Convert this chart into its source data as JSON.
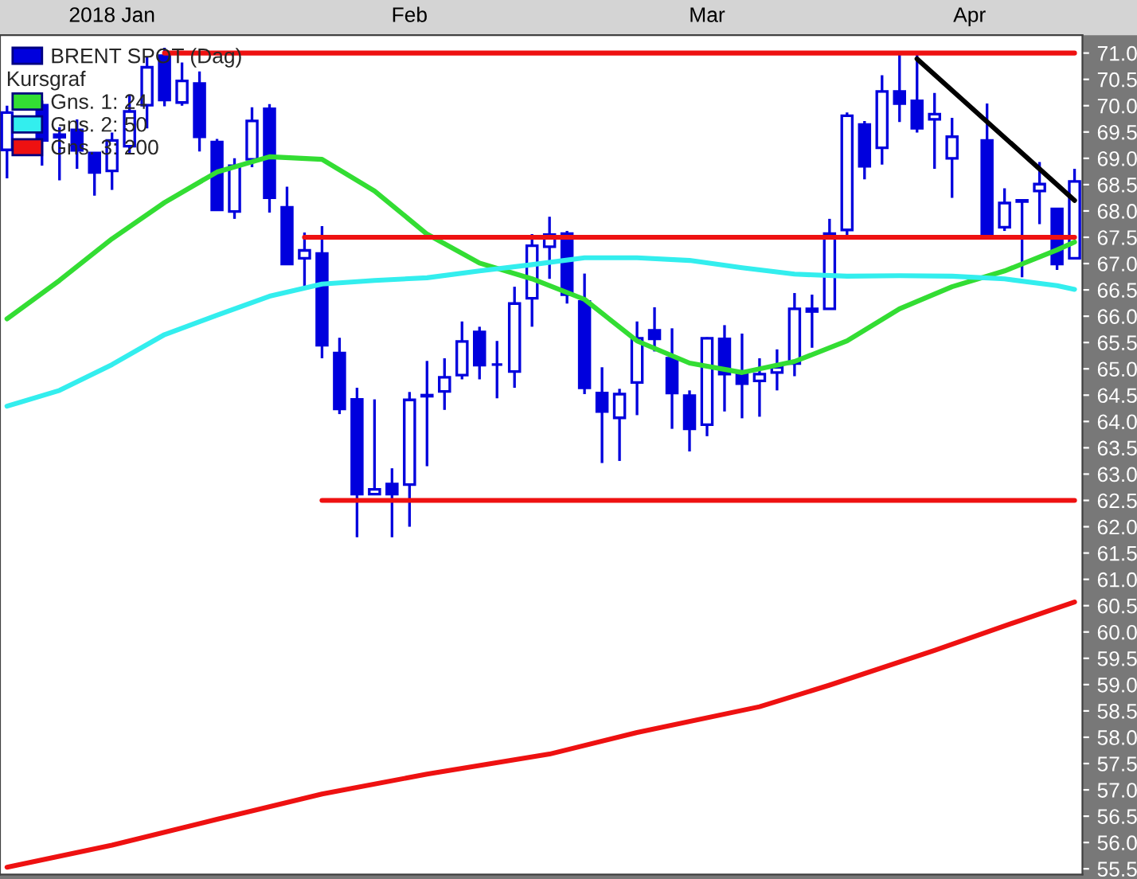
{
  "chart_data": {
    "type": "candlestick",
    "legend_title": "Kursgraf",
    "categories": [
      null,
      null,
      null,
      null,
      null,
      null,
      "2018 Jan",
      null,
      null,
      null,
      null,
      null,
      null,
      null,
      null,
      null,
      null,
      null,
      null,
      null,
      null,
      null,
      null,
      "Feb",
      null,
      null,
      null,
      null,
      null,
      null,
      null,
      null,
      null,
      null,
      null,
      null,
      null,
      null,
      null,
      null,
      "Mar",
      null,
      null,
      null,
      null,
      null,
      null,
      null,
      null,
      null,
      null,
      null,
      null,
      null,
      null,
      "Apr",
      null,
      null,
      null,
      null,
      null,
      null
    ],
    "series": [
      {
        "name": "BRENT SPOT (Dag)",
        "type": "candlestick",
        "color": "#0000dd",
        "ohlc": [
          [
            69.16,
            70.0,
            68.62,
            69.87
          ],
          null,
          [
            70.01,
            70.1,
            68.86,
            69.34
          ],
          [
            69.4,
            69.59,
            68.58,
            69.45
          ],
          [
            69.54,
            69.74,
            68.8,
            69.15
          ],
          [
            69.1,
            69.1,
            68.29,
            68.73
          ],
          [
            68.76,
            69.49,
            68.4,
            69.34
          ],
          [
            69.23,
            70.21,
            69.1,
            69.89
          ],
          [
            70.01,
            70.92,
            69.57,
            70.73
          ],
          [
            70.95,
            71.1,
            69.99,
            70.11
          ],
          [
            70.06,
            70.82,
            70.0,
            70.47
          ],
          [
            70.42,
            70.65,
            69.13,
            69.41
          ],
          [
            69.31,
            69.37,
            68.02,
            68.02
          ],
          [
            67.99,
            69.0,
            67.85,
            68.86
          ],
          [
            68.98,
            69.97,
            68.83,
            69.71
          ],
          [
            69.94,
            70.03,
            67.97,
            68.25
          ],
          [
            68.07,
            68.46,
            66.99,
            66.99
          ],
          [
            67.1,
            67.59,
            66.51,
            67.25
          ],
          [
            67.19,
            67.71,
            65.2,
            65.45
          ],
          [
            65.3,
            65.59,
            64.14,
            64.24
          ],
          [
            64.42,
            64.64,
            61.8,
            62.62
          ],
          [
            62.62,
            64.42,
            62.62,
            62.71
          ],
          [
            62.81,
            63.11,
            61.8,
            62.62
          ],
          [
            62.8,
            64.56,
            62.0,
            64.41
          ],
          [
            64.48,
            65.15,
            63.15,
            64.5
          ],
          [
            64.57,
            65.2,
            64.22,
            64.84
          ],
          [
            64.88,
            65.9,
            64.8,
            65.52
          ],
          [
            65.7,
            65.8,
            64.8,
            65.07
          ],
          [
            65.08,
            65.53,
            64.44,
            65.08
          ],
          [
            64.95,
            66.56,
            64.64,
            66.24
          ],
          [
            66.34,
            67.56,
            65.8,
            67.34
          ],
          [
            67.32,
            67.89,
            66.71,
            67.55
          ],
          [
            67.57,
            67.62,
            66.24,
            66.41
          ],
          [
            66.28,
            66.81,
            64.52,
            64.64
          ],
          [
            64.54,
            65.03,
            63.21,
            64.19
          ],
          [
            64.07,
            64.62,
            63.25,
            64.52
          ],
          [
            64.74,
            65.9,
            64.12,
            65.58
          ],
          [
            65.73,
            66.17,
            65.33,
            65.57
          ],
          [
            65.2,
            65.77,
            63.86,
            64.54
          ],
          [
            64.49,
            64.59,
            63.43,
            63.86
          ],
          [
            63.94,
            65.6,
            63.72,
            65.58
          ],
          [
            65.57,
            65.83,
            64.19,
            64.9
          ],
          [
            64.9,
            65.67,
            64.06,
            64.72
          ],
          [
            64.77,
            65.2,
            64.09,
            64.9
          ],
          [
            64.93,
            65.37,
            64.59,
            65.03
          ],
          [
            65.1,
            66.44,
            64.86,
            66.14
          ],
          [
            66.09,
            66.41,
            65.4,
            66.14
          ],
          [
            66.14,
            67.85,
            66.14,
            67.57
          ],
          [
            67.64,
            69.87,
            67.49,
            69.81
          ],
          [
            69.64,
            69.71,
            68.6,
            68.85
          ],
          [
            69.2,
            70.58,
            68.88,
            70.27
          ],
          [
            70.27,
            71.0,
            69.69,
            70.04
          ],
          [
            70.09,
            71.0,
            69.49,
            69.57
          ],
          [
            69.74,
            70.24,
            68.8,
            69.84
          ],
          [
            69.0,
            69.77,
            68.25,
            69.41
          ],
          null,
          [
            69.34,
            70.04,
            67.52,
            67.52
          ],
          [
            67.69,
            68.43,
            67.62,
            68.15
          ],
          [
            68.18,
            68.2,
            66.74,
            68.2
          ],
          [
            68.38,
            68.93,
            67.75,
            68.51
          ],
          [
            68.04,
            68.04,
            66.88,
            66.99
          ],
          [
            67.1,
            68.8,
            67.1,
            68.56
          ]
        ]
      },
      {
        "name": "Gns. 1: 24",
        "type": "line",
        "color": "#33dd33",
        "values": [
          65.95,
          null,
          null,
          66.68,
          null,
          null,
          67.47,
          null,
          null,
          68.16,
          null,
          null,
          68.74,
          null,
          null,
          69.03,
          null,
          null,
          68.98,
          null,
          null,
          68.38,
          null,
          null,
          67.56,
          null,
          null,
          67.01,
          null,
          null,
          66.71,
          null,
          null,
          66.32,
          null,
          null,
          65.53,
          null,
          null,
          65.11,
          null,
          null,
          64.93,
          null,
          null,
          65.14,
          null,
          null,
          65.53,
          null,
          null,
          66.14,
          null,
          null,
          66.56,
          null,
          null,
          66.86,
          null,
          null,
          67.26,
          67.41
        ]
      },
      {
        "name": "Gns. 2: 50",
        "type": "line",
        "color": "#33eeee",
        "values": [
          64.29,
          null,
          null,
          64.59,
          null,
          null,
          65.08,
          null,
          null,
          65.65,
          null,
          null,
          66.02,
          null,
          null,
          66.38,
          null,
          null,
          66.61,
          null,
          null,
          66.68,
          null,
          null,
          66.73,
          null,
          null,
          66.86,
          null,
          null,
          66.98,
          null,
          null,
          67.11,
          null,
          null,
          67.11,
          null,
          null,
          67.06,
          null,
          null,
          66.92,
          null,
          null,
          66.8,
          null,
          null,
          66.76,
          null,
          null,
          66.77,
          null,
          null,
          66.76,
          null,
          null,
          66.71,
          null,
          null,
          66.58,
          66.51
        ]
      },
      {
        "name": "Gns. 3: 200",
        "type": "line",
        "color": "#ee1111",
        "values": [
          55.53,
          null,
          null,
          null,
          null,
          null,
          55.95,
          null,
          null,
          null,
          null,
          null,
          56.44,
          null,
          null,
          null,
          null,
          null,
          56.92,
          null,
          null,
          null,
          null,
          null,
          57.3,
          null,
          null,
          null,
          null,
          null,
          null,
          57.68,
          null,
          null,
          null,
          null,
          58.09,
          null,
          null,
          null,
          null,
          null,
          null,
          58.58,
          null,
          null,
          null,
          58.99,
          null,
          null,
          null,
          null,
          null,
          59.65,
          null,
          null,
          null,
          null,
          60.23,
          null,
          null,
          60.57
        ]
      },
      {
        "type": "line",
        "color": "#ee1111",
        "values": [
          null,
          null,
          null,
          null,
          null,
          null,
          null,
          null,
          null,
          71.0,
          null,
          null,
          null,
          null,
          null,
          null,
          null,
          null,
          null,
          null,
          null,
          null,
          null,
          null,
          null,
          null,
          null,
          null,
          null,
          null,
          null,
          null,
          null,
          null,
          null,
          null,
          null,
          null,
          null,
          null,
          null,
          null,
          null,
          null,
          null,
          null,
          null,
          null,
          null,
          null,
          null,
          null,
          null,
          null,
          null,
          null,
          null,
          null,
          null,
          null,
          null,
          71.0
        ]
      },
      {
        "type": "line",
        "color": "#ee1111",
        "values": [
          null,
          null,
          null,
          null,
          null,
          null,
          null,
          null,
          null,
          null,
          null,
          null,
          null,
          null,
          null,
          null,
          null,
          67.5,
          null,
          null,
          null,
          null,
          null,
          null,
          null,
          null,
          null,
          null,
          null,
          null,
          null,
          null,
          null,
          null,
          null,
          null,
          null,
          null,
          null,
          null,
          null,
          null,
          null,
          null,
          null,
          null,
          null,
          null,
          null,
          null,
          null,
          null,
          null,
          null,
          null,
          null,
          null,
          null,
          null,
          null,
          null,
          67.5
        ]
      },
      {
        "type": "line",
        "color": "#ee1111",
        "values": [
          null,
          null,
          null,
          null,
          null,
          null,
          null,
          null,
          null,
          null,
          null,
          null,
          null,
          null,
          null,
          null,
          null,
          null,
          62.5,
          null,
          null,
          null,
          null,
          null,
          null,
          null,
          null,
          null,
          null,
          null,
          null,
          null,
          null,
          null,
          null,
          null,
          null,
          null,
          null,
          null,
          null,
          null,
          null,
          null,
          null,
          null,
          null,
          null,
          null,
          null,
          null,
          null,
          null,
          null,
          null,
          null,
          null,
          null,
          null,
          null,
          null,
          62.5
        ]
      },
      {
        "type": "line",
        "color": "#000000",
        "values": [
          null,
          null,
          null,
          null,
          null,
          null,
          null,
          null,
          null,
          null,
          null,
          null,
          null,
          null,
          null,
          null,
          null,
          null,
          null,
          null,
          null,
          null,
          null,
          null,
          null,
          null,
          null,
          null,
          null,
          null,
          null,
          null,
          null,
          null,
          null,
          null,
          null,
          null,
          null,
          null,
          null,
          null,
          null,
          null,
          null,
          null,
          null,
          null,
          null,
          null,
          null,
          null,
          70.89,
          null,
          null,
          null,
          null,
          null,
          null,
          null,
          null,
          68.2
        ]
      }
    ],
    "ylim": [
      55.39,
      71.34
    ],
    "yticks": [
      55.5,
      {
        "value": 56,
        "label": "56.0"
      },
      56.5,
      {
        "value": 57,
        "label": "57.0"
      },
      57.5,
      {
        "value": 58,
        "label": "58.0"
      },
      58.5,
      {
        "value": 59,
        "label": "59.0"
      },
      59.5,
      {
        "value": 60,
        "label": "60.0"
      },
      60.5,
      {
        "value": 61,
        "label": "61.0"
      },
      61.5,
      {
        "value": 62,
        "label": "62.0"
      },
      62.5,
      {
        "value": 63,
        "label": "63.0"
      },
      63.5,
      {
        "value": 64,
        "label": "64.0"
      },
      64.5,
      {
        "value": 65,
        "label": "65.0"
      },
      65.5,
      {
        "value": 66,
        "label": "66.0"
      },
      66.5,
      {
        "value": 67,
        "label": "67.0"
      },
      67.5,
      {
        "value": 68,
        "label": "68.0"
      },
      68.5,
      {
        "value": 69,
        "label": "69.0"
      },
      69.5,
      {
        "value": 70,
        "label": "70.0"
      },
      70.5,
      {
        "value": 71,
        "label": "71.0"
      }
    ],
    "grid": false,
    "legend": "top left"
  }
}
